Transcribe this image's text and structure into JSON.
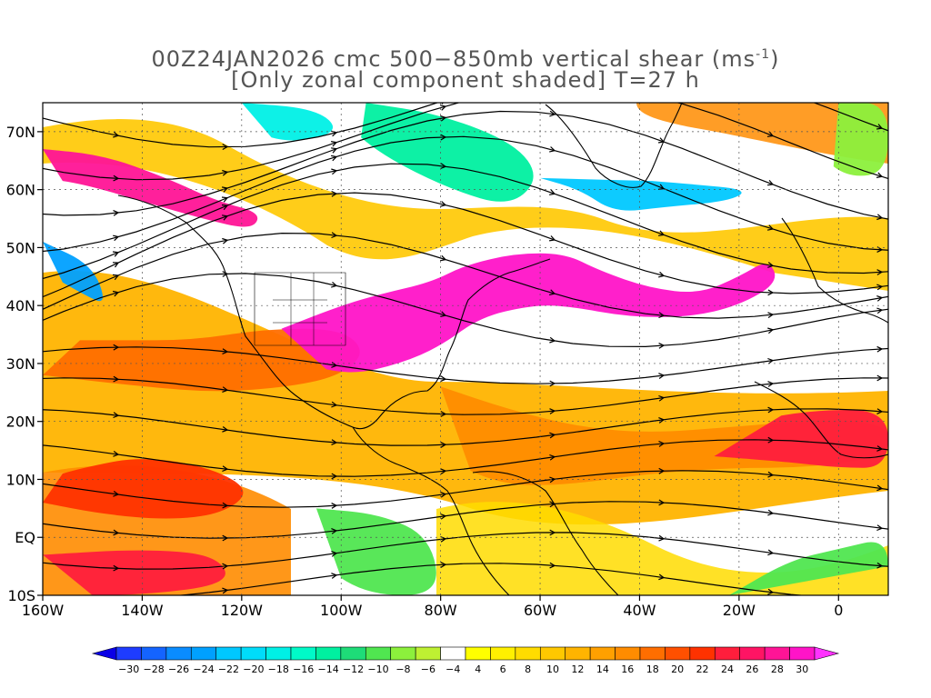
{
  "title": {
    "line1": "00Z24JAN2026 cmc 500−850mb vertical shear (ms",
    "line1_sup": "-1",
    "line1_tail": ")",
    "line2": "[Only zonal component shaded] T=27 h"
  },
  "axes": {
    "x_ticks": [
      {
        "lon": -160,
        "label": "160W"
      },
      {
        "lon": -140,
        "label": "140W"
      },
      {
        "lon": -120,
        "label": "120W"
      },
      {
        "lon": -100,
        "label": "100W"
      },
      {
        "lon": -80,
        "label": "80W"
      },
      {
        "lon": -60,
        "label": "60W"
      },
      {
        "lon": -40,
        "label": "40W"
      },
      {
        "lon": -20,
        "label": "20W"
      },
      {
        "lon": 0,
        "label": "0"
      }
    ],
    "y_ticks": [
      {
        "lat": 70,
        "label": "70N"
      },
      {
        "lat": 60,
        "label": "60N"
      },
      {
        "lat": 50,
        "label": "50N"
      },
      {
        "lat": 40,
        "label": "40N"
      },
      {
        "lat": 30,
        "label": "30N"
      },
      {
        "lat": 20,
        "label": "20N"
      },
      {
        "lat": 10,
        "label": "10N"
      },
      {
        "lat": 0,
        "label": "EQ"
      },
      {
        "lat": -10,
        "label": "10S"
      }
    ],
    "lon_range": [
      -160,
      10
    ],
    "lat_range": [
      -10,
      75
    ]
  },
  "colorbar": {
    "labels": [
      "-30",
      "-28",
      "-26",
      "-24",
      "-22",
      "-20",
      "-18",
      "-16",
      "-14",
      "-12",
      "-10",
      "-8",
      "-6",
      "-4",
      "4",
      "6",
      "8",
      "10",
      "12",
      "14",
      "16",
      "18",
      "20",
      "22",
      "24",
      "26",
      "28",
      "30"
    ],
    "colors": [
      "#1e3cff",
      "#1464ff",
      "#0a8cff",
      "#00a0ff",
      "#00c8ff",
      "#00dcfa",
      "#00f0e6",
      "#00fac8",
      "#00f0a0",
      "#1edc78",
      "#50e650",
      "#8cf03c",
      "#bef032",
      "#ffffff",
      "#ffff00",
      "#fff000",
      "#ffdc00",
      "#ffc800",
      "#ffb400",
      "#ffa000",
      "#ff8c00",
      "#ff6e00",
      "#ff5000",
      "#ff3200",
      "#ff1e3c",
      "#ff1464",
      "#ff1496",
      "#ff14c8"
    ],
    "end_low_color": "#0a00e6",
    "end_high_color": "#ff32ff"
  },
  "shear_regions": [
    {
      "name": "subtropical-jet-pacific",
      "value": 18,
      "lonlat": [
        [
          -160,
          28
        ],
        [
          -140,
          26
        ],
        [
          -125,
          25
        ],
        [
          -110,
          26
        ],
        [
          -100,
          28
        ],
        [
          -95,
          32
        ],
        [
          -100,
          36
        ],
        [
          -115,
          36
        ],
        [
          -130,
          34
        ],
        [
          -145,
          34
        ],
        [
          -160,
          34
        ]
      ]
    },
    {
      "name": "jet-core-north-america",
      "value": 30,
      "lonlat": [
        [
          -112,
          36
        ],
        [
          -100,
          40
        ],
        [
          -92,
          42
        ],
        [
          -82,
          44
        ],
        [
          -75,
          47
        ],
        [
          -65,
          49
        ],
        [
          -55,
          49
        ],
        [
          -48,
          46
        ],
        [
          -38,
          43
        ],
        [
          -28,
          42
        ],
        [
          -20,
          45
        ],
        [
          -14,
          48
        ],
        [
          -12,
          44
        ],
        [
          -20,
          40
        ],
        [
          -30,
          38
        ],
        [
          -42,
          38
        ],
        [
          -55,
          40
        ],
        [
          -62,
          40
        ],
        [
          -72,
          38
        ],
        [
          -80,
          33
        ],
        [
          -88,
          30
        ],
        [
          -98,
          28
        ],
        [
          -108,
          30
        ]
      ]
    },
    {
      "name": "jet-core-gulf-alaska",
      "value": 28,
      "lonlat": [
        [
          -160,
          67
        ],
        [
          -148,
          66
        ],
        [
          -135,
          62
        ],
        [
          -125,
          58
        ],
        [
          -116,
          56
        ],
        [
          -118,
          53
        ],
        [
          -128,
          55
        ],
        [
          -140,
          58
        ],
        [
          -152,
          61
        ],
        [
          -160,
          62
        ]
      ]
    },
    {
      "name": "tropical-atlantic-band",
      "value": 16,
      "lonlat": [
        [
          -80,
          26
        ],
        [
          -66,
          22
        ],
        [
          -52,
          19
        ],
        [
          -38,
          18
        ],
        [
          -22,
          19
        ],
        [
          -8,
          20
        ],
        [
          10,
          20
        ],
        [
          10,
          14
        ],
        [
          -6,
          12
        ],
        [
          -22,
          12
        ],
        [
          -38,
          11
        ],
        [
          -55,
          9
        ],
        [
          -68,
          9
        ],
        [
          -80,
          14
        ]
      ]
    },
    {
      "name": "central-pacific-low-lat",
      "value": 22,
      "lonlat": [
        [
          -160,
          6
        ],
        [
          -148,
          4
        ],
        [
          -135,
          3
        ],
        [
          -124,
          4
        ],
        [
          -118,
          8
        ],
        [
          -126,
          12
        ],
        [
          -140,
          14
        ],
        [
          -152,
          12
        ],
        [
          -160,
          10
        ]
      ]
    },
    {
      "name": "pacific-equatorial",
      "value": 24,
      "lonlat": [
        [
          -160,
          -3
        ],
        [
          -140,
          -2
        ],
        [
          -125,
          -3
        ],
        [
          -122,
          -8
        ],
        [
          -140,
          -10
        ],
        [
          -160,
          -10
        ]
      ]
    },
    {
      "name": "sahara-band",
      "value": 24,
      "lonlat": [
        [
          -25,
          14
        ],
        [
          -10,
          13
        ],
        [
          0,
          12
        ],
        [
          10,
          12
        ],
        [
          10,
          22
        ],
        [
          -5,
          22
        ],
        [
          -18,
          20
        ]
      ]
    },
    {
      "name": "negative-greenland-south",
      "value": -22,
      "lonlat": [
        [
          -60,
          62
        ],
        [
          -52,
          60
        ],
        [
          -45,
          56
        ],
        [
          -35,
          57
        ],
        [
          -22,
          58
        ],
        [
          -18,
          60
        ],
        [
          -30,
          61
        ],
        [
          -45,
          62
        ]
      ]
    },
    {
      "name": "negative-labrador",
      "value": -14,
      "lonlat": [
        [
          -95,
          75
        ],
        [
          -80,
          73
        ],
        [
          -65,
          68
        ],
        [
          -60,
          62
        ],
        [
          -66,
          57
        ],
        [
          -78,
          60
        ],
        [
          -92,
          66
        ],
        [
          -100,
          72
        ]
      ]
    },
    {
      "name": "negative-hudson-west",
      "value": -18,
      "lonlat": [
        [
          -120,
          75
        ],
        [
          -105,
          74
        ],
        [
          -100,
          70
        ],
        [
          -110,
          68
        ],
        [
          -118,
          70
        ]
      ]
    },
    {
      "name": "negative-pacific-nw",
      "value": -24,
      "lonlat": [
        [
          -160,
          51
        ],
        [
          -150,
          47
        ],
        [
          -147,
          40
        ],
        [
          -152,
          42
        ],
        [
          -160,
          46
        ]
      ]
    },
    {
      "name": "negative-south-america",
      "value": -10,
      "lonlat": [
        [
          -105,
          5
        ],
        [
          -92,
          4
        ],
        [
          -82,
          0
        ],
        [
          -80,
          -10
        ],
        [
          -95,
          -10
        ],
        [
          -105,
          -4
        ]
      ]
    },
    {
      "name": "negative-south-atlantic",
      "value": -10,
      "lonlat": [
        [
          -22,
          -10
        ],
        [
          -10,
          -4
        ],
        [
          0,
          -2
        ],
        [
          10,
          0
        ],
        [
          10,
          -10
        ]
      ]
    },
    {
      "name": "negative-arctic-scand",
      "value": -8,
      "lonlat": [
        [
          0,
          75
        ],
        [
          10,
          75
        ],
        [
          10,
          63
        ],
        [
          2,
          62
        ],
        [
          -4,
          66
        ]
      ]
    }
  ]
}
